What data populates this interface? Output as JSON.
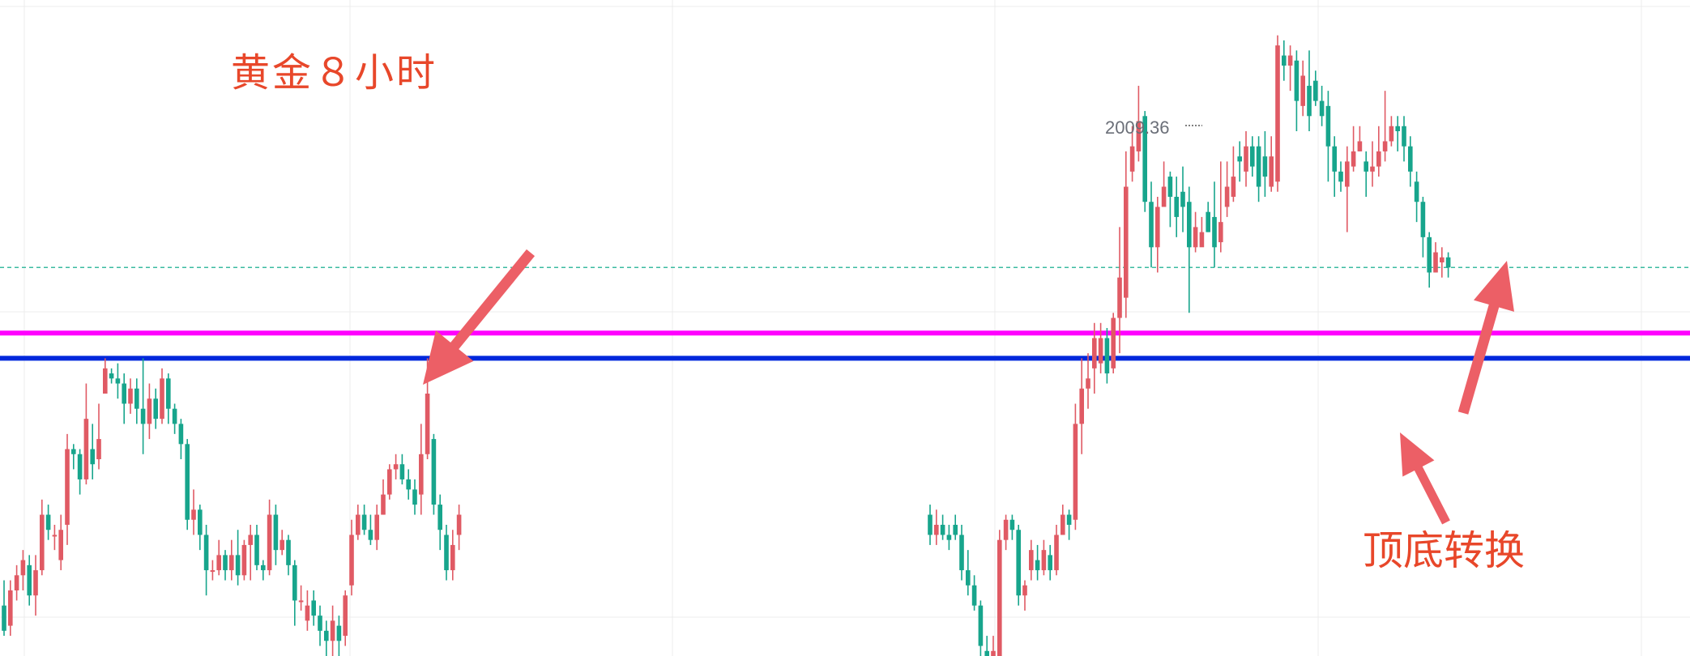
{
  "title": "黄金８小时",
  "annotation": "顶底转换",
  "colors": {
    "up": "#e05a64",
    "down": "#17a58c",
    "magenta_line": "#ff00ff",
    "blue_line": "#0028dc",
    "arrow": "#ec5f66",
    "text_red": "#e8472a",
    "dashed_line": "#3cbba0",
    "grid": "#ececec"
  },
  "chart_data": {
    "type": "candlestick",
    "title": "黄金８小时",
    "price_range": [
      1885,
      2015
    ],
    "peak_label": "2009.36",
    "current_price_line": 1962,
    "horizontal_levels": [
      {
        "price": 1949,
        "color": "#ff00ff"
      },
      {
        "price": 1944,
        "color": "#0028dc"
      }
    ],
    "annotations": [
      "顶底转换"
    ],
    "candles": [
      [
        1895,
        1890,
        1900,
        1889
      ],
      [
        1891,
        1898,
        1900,
        1889
      ],
      [
        1898,
        1901,
        1903,
        1896
      ],
      [
        1901,
        1904,
        1906,
        1898
      ],
      [
        1903,
        1897,
        1905,
        1895
      ],
      [
        1897,
        1902,
        1905,
        1893
      ],
      [
        1902,
        1913,
        1916,
        1901
      ],
      [
        1913,
        1910,
        1915,
        1908
      ],
      [
        1909,
        1909,
        1911,
        1906
      ],
      [
        1904,
        1910,
        1913,
        1902
      ],
      [
        1911,
        1926,
        1929,
        1907
      ],
      [
        1926,
        1925,
        1927,
        1922
      ],
      [
        1925,
        1920,
        1926,
        1917
      ],
      [
        1920,
        1932,
        1939,
        1919
      ],
      [
        1926,
        1923,
        1931,
        1920
      ],
      [
        1924,
        1928,
        1935,
        1922
      ],
      [
        1937,
        1942,
        1944,
        1938
      ],
      [
        1941,
        1940,
        1942,
        1939
      ],
      [
        1940,
        1939,
        1943,
        1936
      ],
      [
        1939,
        1935,
        1941,
        1931
      ],
      [
        1935,
        1938,
        1940,
        1933
      ],
      [
        1938,
        1934,
        1940,
        1931
      ],
      [
        1934,
        1931,
        1944,
        1925
      ],
      [
        1931,
        1936,
        1939,
        1928
      ],
      [
        1936,
        1932,
        1938,
        1930
      ],
      [
        1932,
        1940,
        1942,
        1931
      ],
      [
        1940,
        1934,
        1941,
        1931
      ],
      [
        1934,
        1931,
        1935,
        1929
      ],
      [
        1931,
        1927,
        1932,
        1924
      ],
      [
        1927,
        1912,
        1928,
        1910
      ],
      [
        1912,
        1914,
        1918,
        1909
      ],
      [
        1914,
        1909,
        1915,
        1906
      ],
      [
        1909,
        1902,
        1911,
        1897
      ],
      [
        1902,
        1902,
        1904,
        1900
      ],
      [
        1902,
        1905,
        1908,
        1901
      ],
      [
        1905,
        1902,
        1906,
        1900
      ],
      [
        1902,
        1905,
        1908,
        1900
      ],
      [
        1905,
        1901,
        1910,
        1899
      ],
      [
        1901,
        1907,
        1908,
        1900
      ],
      [
        1907,
        1909,
        1911,
        1900
      ],
      [
        1909,
        1903,
        1911,
        1902
      ],
      [
        1903,
        1902,
        1904,
        1900
      ],
      [
        1902,
        1913,
        1916,
        1901
      ],
      [
        1913,
        1906,
        1915,
        1903
      ],
      [
        1906,
        1908,
        1910,
        1905
      ],
      [
        1908,
        1903,
        1909,
        1901
      ],
      [
        1903,
        1896,
        1904,
        1891
      ],
      [
        1896,
        1896,
        1899,
        1894
      ],
      [
        1892,
        1895,
        1898,
        1890
      ],
      [
        1896,
        1893,
        1898,
        1891
      ],
      [
        1893,
        1890,
        1895,
        1887
      ],
      [
        1890,
        1888,
        1892,
        1885
      ],
      [
        1888,
        1892,
        1895,
        1885
      ],
      [
        1891,
        1888,
        1893,
        1885
      ],
      [
        1889,
        1897,
        1898,
        1887
      ],
      [
        1899,
        1909,
        1912,
        1897
      ],
      [
        1909,
        1913,
        1915,
        1908
      ],
      [
        1913,
        1910,
        1915,
        1909
      ],
      [
        1910,
        1908,
        1913,
        1907
      ],
      [
        1908,
        1913,
        1915,
        1906
      ],
      [
        1913,
        1917,
        1920,
        1913
      ],
      [
        1917,
        1922,
        1923,
        1916
      ],
      [
        1922,
        1923,
        1925,
        1920
      ],
      [
        1923,
        1920,
        1925,
        1919
      ],
      [
        1920,
        1918,
        1922,
        1916
      ],
      [
        1918,
        1915,
        1920,
        1913
      ],
      [
        1917,
        1925,
        1931,
        1913
      ],
      [
        1925,
        1937,
        1944,
        1924
      ],
      [
        1928,
        1915,
        1929,
        1913
      ],
      [
        1915,
        1910,
        1917,
        1906
      ],
      [
        1909,
        1902,
        1911,
        1900
      ],
      [
        1902,
        1907,
        1910,
        1900
      ],
      [
        1909,
        1913,
        1915,
        1906
      ],
      [
        1913,
        1909,
        1915,
        1907
      ],
      [
        1909,
        1911,
        1914,
        1907
      ],
      [
        1911,
        1909,
        1913,
        1908
      ],
      [
        1909,
        1908,
        1911,
        1906
      ],
      [
        1911,
        1909,
        1913,
        1908
      ],
      [
        1909,
        1902,
        1911,
        1900
      ],
      [
        1902,
        1899,
        1906,
        1897
      ],
      [
        1899,
        1895,
        1901,
        1894
      ],
      [
        1895,
        1887,
        1896,
        1883
      ],
      [
        1886,
        1884,
        1889,
        1881
      ],
      [
        1884,
        1886,
        1889,
        1883
      ],
      [
        1884,
        1908,
        1910,
        1883
      ],
      [
        1908,
        1912,
        1913,
        1906
      ],
      [
        1912,
        1910,
        1913,
        1908
      ],
      [
        1910,
        1897,
        1911,
        1895
      ],
      [
        1897,
        1899,
        1900,
        1894
      ],
      [
        1902,
        1906,
        1908,
        1900
      ],
      [
        1904,
        1902,
        1907,
        1900
      ],
      [
        1902,
        1906,
        1908,
        1901
      ],
      [
        1905,
        1902,
        1907,
        1900
      ],
      [
        1902,
        1909,
        1911,
        1901
      ],
      [
        1909,
        1913,
        1915,
        1909
      ],
      [
        1913,
        1911,
        1914,
        1908
      ],
      [
        1912,
        1931,
        1935,
        1910
      ],
      [
        1931,
        1938,
        1944,
        1925
      ],
      [
        1938,
        1940,
        1945,
        1934
      ],
      [
        1942,
        1948,
        1951,
        1937
      ],
      [
        1943,
        1948,
        1951,
        1941
      ],
      [
        1948,
        1941,
        1950,
        1939
      ],
      [
        1942,
        1952,
        1953,
        1941
      ],
      [
        1952,
        1960,
        1970,
        1945
      ],
      [
        1956,
        1978,
        1985,
        1952
      ],
      [
        1981,
        1986,
        1990,
        1979
      ],
      [
        1985,
        1991,
        1998,
        1983
      ],
      [
        1992,
        1975,
        1993,
        1973
      ],
      [
        1975,
        1966,
        1979,
        1962
      ],
      [
        1966,
        1974,
        1976,
        1961
      ],
      [
        1974,
        1978,
        1983,
        1976
      ],
      [
        1980,
        1976,
        1981,
        1970
      ],
      [
        1976,
        1972,
        1980,
        1968
      ],
      [
        1977,
        1974,
        1982,
        1969
      ],
      [
        1975,
        1966,
        1978,
        1953
      ],
      [
        1966,
        1970,
        1973,
        1965
      ],
      [
        1966,
        1969,
        1972,
        1968
      ],
      [
        1973,
        1969,
        1975,
        1969
      ],
      [
        1972,
        1966,
        1979,
        1962
      ],
      [
        1967,
        1971,
        1983,
        1965
      ],
      [
        1974,
        1978,
        1983,
        1972
      ],
      [
        1976,
        1980,
        1986,
        1975
      ],
      [
        1984,
        1983,
        1987,
        1979
      ],
      [
        1981,
        1986,
        1989,
        1978
      ],
      [
        1986,
        1982,
        1988,
        1980
      ],
      [
        1986,
        1978,
        1988,
        1975
      ],
      [
        1984,
        1980,
        1989,
        1976
      ],
      [
        1978,
        1984,
        1988,
        1977
      ],
      [
        1979,
        2006,
        2008,
        1977
      ],
      [
        2004,
        2002,
        2007,
        1999
      ],
      [
        2002,
        2004,
        2006,
        1997
      ],
      [
        2003,
        1995,
        2005,
        1989
      ],
      [
        1994,
        2000,
        2003,
        1992
      ],
      [
        1998,
        1992,
        2005,
        1989
      ],
      [
        1999,
        1995,
        2001,
        1994
      ],
      [
        1995,
        1992,
        1998,
        1990
      ],
      [
        1994,
        1986,
        1997,
        1979
      ],
      [
        1986,
        1981,
        1988,
        1976
      ],
      [
        1981,
        1979,
        1983,
        1977
      ],
      [
        1978,
        1983,
        1986,
        1969
      ],
      [
        1982,
        1985,
        1990,
        1981
      ],
      [
        1985,
        1987,
        1990,
        1985
      ],
      [
        1983,
        1981,
        1985,
        1976
      ],
      [
        1981,
        1982,
        1987,
        1978
      ],
      [
        1982,
        1985,
        1990,
        1980
      ],
      [
        1985,
        1987,
        1997,
        1983
      ],
      [
        1987,
        1990,
        1992,
        1986
      ],
      [
        1990,
        1989,
        1992,
        1985
      ],
      [
        1990,
        1986,
        1992,
        1983
      ],
      [
        1986,
        1981,
        1988,
        1978
      ],
      [
        1979,
        1975,
        1981,
        1971
      ],
      [
        1975,
        1968,
        1976,
        1964
      ],
      [
        1968,
        1961,
        1969,
        1958
      ],
      [
        1961,
        1965,
        1967,
        1961
      ],
      [
        1963,
        1964,
        1966,
        1960
      ],
      [
        1964,
        1962,
        1965,
        1960
      ]
    ]
  }
}
